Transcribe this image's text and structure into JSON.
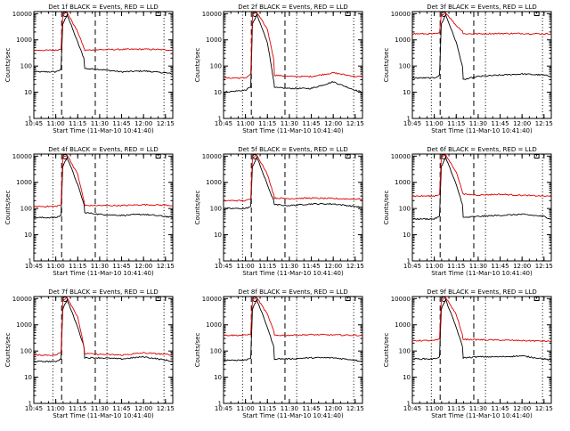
{
  "figure": {
    "x_ticks": [
      "10:45",
      "11:00",
      "11:15",
      "11:30",
      "11:45",
      "12:00",
      "12:15"
    ],
    "x_label": "Start Time (11-Mar-10 10:41:40)",
    "y_label": "Counts/sec",
    "y_ticks": [
      "1",
      "10",
      "100",
      "1000",
      "10000"
    ],
    "colors": {
      "events": "#000000",
      "lld": "#dd0000",
      "markers": "#000000"
    }
  },
  "chart_data": [
    {
      "type": "line",
      "title": "Det 1f BLACK = Events, RED = LLD",
      "xlabel": "Start Time (11-Mar-10 10:41:40)",
      "ylabel": "Counts/sec",
      "xlim": [
        "10:45",
        "12:20"
      ],
      "ylim": [
        1,
        12000
      ],
      "yscale": "log",
      "x": [
        10.75,
        11.0,
        11.06,
        11.08,
        11.13,
        11.25,
        11.32,
        11.33,
        11.5,
        11.75,
        12.0,
        12.25,
        12.33
      ],
      "series": [
        {
          "name": "Events",
          "values": [
            60,
            60,
            75,
            4000,
            9000,
            800,
            200,
            80,
            75,
            60,
            65,
            55,
            50
          ]
        },
        {
          "name": "LLD",
          "values": [
            400,
            400,
            450,
            9500,
            11000,
            2000,
            500,
            400,
            420,
            430,
            440,
            420,
            400
          ]
        }
      ],
      "dotted_lines": [
        "10:58",
        "11:35",
        "12:14"
      ],
      "dashed_lines": [
        "11:04",
        "11:27"
      ]
    },
    {
      "type": "line",
      "title": "Det 2f BLACK = Events, RED = LLD",
      "xlabel": "Start Time (11-Mar-10 10:41:40)",
      "ylabel": "Counts/sec",
      "xlim": [
        "10:45",
        "12:20"
      ],
      "ylim": [
        1,
        12000
      ],
      "yscale": "log",
      "x": [
        10.75,
        11.0,
        11.06,
        11.08,
        11.13,
        11.25,
        11.32,
        11.33,
        11.5,
        11.75,
        12.0,
        12.25,
        12.33
      ],
      "series": [
        {
          "name": "Events",
          "values": [
            10,
            12,
            16,
            4000,
            9000,
            800,
            30,
            15,
            14,
            14,
            25,
            12,
            10
          ]
        },
        {
          "name": "LLD",
          "values": [
            35,
            35,
            50,
            9000,
            11000,
            2500,
            200,
            45,
            40,
            40,
            55,
            40,
            40
          ]
        }
      ],
      "dotted_lines": [
        "10:58",
        "11:35",
        "12:14"
      ],
      "dashed_lines": [
        "11:04",
        "11:27"
      ]
    },
    {
      "type": "line",
      "title": "Det 3f BLACK = Events, RED = LLD",
      "xlabel": "Start Time (11-Mar-10 10:41:40)",
      "ylabel": "Counts/sec",
      "xlim": [
        "10:45",
        "12:20"
      ],
      "ylim": [
        1,
        12000
      ],
      "yscale": "log",
      "x": [
        10.75,
        11.0,
        11.06,
        11.08,
        11.13,
        11.25,
        11.32,
        11.33,
        11.5,
        11.75,
        12.0,
        12.25,
        12.33
      ],
      "series": [
        {
          "name": "Events",
          "values": [
            35,
            35,
            45,
            4000,
            9000,
            800,
            100,
            30,
            40,
            45,
            50,
            45,
            40
          ]
        },
        {
          "name": "LLD",
          "values": [
            1700,
            1700,
            1800,
            9000,
            11000,
            3500,
            2200,
            1700,
            1700,
            1750,
            1750,
            1700,
            1700
          ]
        }
      ],
      "dotted_lines": [
        "10:58",
        "11:35",
        "12:14"
      ],
      "dashed_lines": [
        "11:04",
        "11:27"
      ]
    },
    {
      "type": "line",
      "title": "Det 4f BLACK = Events, RED = LLD",
      "xlabel": "Start Time (11-Mar-10 10:41:40)",
      "ylabel": "Counts/sec",
      "xlim": [
        "10:45",
        "12:20"
      ],
      "ylim": [
        1,
        12000
      ],
      "yscale": "log",
      "x": [
        10.75,
        11.0,
        11.06,
        11.08,
        11.13,
        11.25,
        11.32,
        11.33,
        11.5,
        11.75,
        12.0,
        12.25,
        12.33
      ],
      "series": [
        {
          "name": "Events",
          "values": [
            45,
            45,
            55,
            4000,
            9000,
            800,
            150,
            70,
            60,
            55,
            60,
            50,
            45
          ]
        },
        {
          "name": "LLD",
          "values": [
            120,
            120,
            140,
            9000,
            11000,
            2000,
            200,
            130,
            130,
            130,
            140,
            135,
            130
          ]
        }
      ],
      "dotted_lines": [
        "10:58",
        "11:35",
        "12:14"
      ],
      "dashed_lines": [
        "11:04",
        "11:27"
      ]
    },
    {
      "type": "line",
      "title": "Det 5f BLACK = Events, RED = LLD",
      "xlabel": "Start Time (11-Mar-10 10:41:40)",
      "ylabel": "Counts/sec",
      "xlim": [
        "10:45",
        "12:20"
      ],
      "ylim": [
        1,
        12000
      ],
      "yscale": "log",
      "x": [
        10.75,
        11.0,
        11.06,
        11.08,
        11.13,
        11.25,
        11.32,
        11.33,
        11.5,
        11.75,
        12.0,
        12.25,
        12.33
      ],
      "series": [
        {
          "name": "Events",
          "values": [
            100,
            100,
            120,
            4000,
            9000,
            800,
            200,
            140,
            130,
            150,
            150,
            120,
            110
          ]
        },
        {
          "name": "LLD",
          "values": [
            200,
            200,
            230,
            9000,
            11000,
            2000,
            350,
            250,
            240,
            250,
            240,
            230,
            230
          ]
        }
      ],
      "dotted_lines": [
        "10:58",
        "11:35",
        "12:14"
      ],
      "dashed_lines": [
        "11:04",
        "11:27"
      ]
    },
    {
      "type": "line",
      "title": "Det 6f BLACK = Events, RED = LLD",
      "xlabel": "Start Time (11-Mar-10 10:41:40)",
      "ylabel": "Counts/sec",
      "xlim": [
        "10:45",
        "12:20"
      ],
      "ylim": [
        1,
        12000
      ],
      "yscale": "log",
      "x": [
        10.75,
        11.0,
        11.06,
        11.08,
        11.13,
        11.25,
        11.32,
        11.33,
        11.5,
        11.75,
        12.0,
        12.25,
        12.33
      ],
      "series": [
        {
          "name": "Events",
          "values": [
            40,
            40,
            50,
            4000,
            9000,
            800,
            150,
            45,
            50,
            55,
            60,
            50,
            40
          ]
        },
        {
          "name": "LLD",
          "values": [
            300,
            300,
            350,
            9000,
            11000,
            2500,
            450,
            350,
            330,
            350,
            320,
            300,
            290
          ]
        }
      ],
      "dotted_lines": [
        "10:58",
        "11:35",
        "12:14"
      ],
      "dashed_lines": [
        "11:04",
        "11:27"
      ]
    },
    {
      "type": "line",
      "title": "Det 7f BLACK = Events, RED = LLD",
      "xlabel": "Start Time (11-Mar-10 10:41:40)",
      "ylabel": "Counts/sec",
      "xlim": [
        "10:45",
        "12:20"
      ],
      "ylim": [
        1,
        12000
      ],
      "yscale": "log",
      "x": [
        10.75,
        11.0,
        11.06,
        11.08,
        11.13,
        11.25,
        11.32,
        11.33,
        11.5,
        11.75,
        12.0,
        12.25,
        12.33
      ],
      "series": [
        {
          "name": "Events",
          "values": [
            40,
            40,
            50,
            4000,
            9000,
            800,
            150,
            55,
            55,
            50,
            60,
            45,
            40
          ]
        },
        {
          "name": "LLD",
          "values": [
            70,
            70,
            90,
            9000,
            11000,
            2000,
            150,
            80,
            75,
            70,
            85,
            75,
            70
          ]
        }
      ],
      "dotted_lines": [
        "10:58",
        "11:35",
        "12:14"
      ],
      "dashed_lines": [
        "11:04",
        "11:27"
      ]
    },
    {
      "type": "line",
      "title": "Det 8f BLACK = Events, RED = LLD",
      "xlabel": "Start Time (11-Mar-10 10:41:40)",
      "ylabel": "Counts/sec",
      "xlim": [
        "10:45",
        "12:20"
      ],
      "ylim": [
        1,
        12000
      ],
      "yscale": "log",
      "x": [
        10.75,
        11.0,
        11.06,
        11.08,
        11.13,
        11.25,
        11.32,
        11.33,
        11.5,
        11.75,
        12.0,
        12.25,
        12.33
      ],
      "series": [
        {
          "name": "Events",
          "values": [
            45,
            45,
            55,
            4000,
            9000,
            800,
            150,
            50,
            50,
            55,
            55,
            45,
            40
          ]
        },
        {
          "name": "LLD",
          "values": [
            400,
            400,
            450,
            9000,
            11000,
            2500,
            600,
            400,
            400,
            420,
            410,
            400,
            390
          ]
        }
      ],
      "dotted_lines": [
        "10:58",
        "11:35",
        "12:14"
      ],
      "dashed_lines": [
        "11:04",
        "11:27"
      ]
    },
    {
      "type": "line",
      "title": "Det 9f BLACK = Events, RED = LLD",
      "xlabel": "Start Time (11-Mar-10 10:41:40)",
      "ylabel": "Counts/sec",
      "xlim": [
        "10:45",
        "12:20"
      ],
      "ylim": [
        1,
        12000
      ],
      "yscale": "log",
      "x": [
        10.75,
        11.0,
        11.06,
        11.08,
        11.13,
        11.25,
        11.32,
        11.33,
        11.5,
        11.75,
        12.0,
        12.25,
        12.33
      ],
      "series": [
        {
          "name": "Events",
          "values": [
            50,
            50,
            60,
            4000,
            9000,
            800,
            150,
            55,
            60,
            60,
            65,
            50,
            45
          ]
        },
        {
          "name": "LLD",
          "values": [
            250,
            250,
            280,
            9000,
            11000,
            2500,
            400,
            280,
            270,
            260,
            250,
            240,
            230
          ]
        }
      ],
      "dotted_lines": [
        "10:58",
        "11:35",
        "12:14"
      ],
      "dashed_lines": [
        "11:04",
        "11:27"
      ]
    }
  ]
}
